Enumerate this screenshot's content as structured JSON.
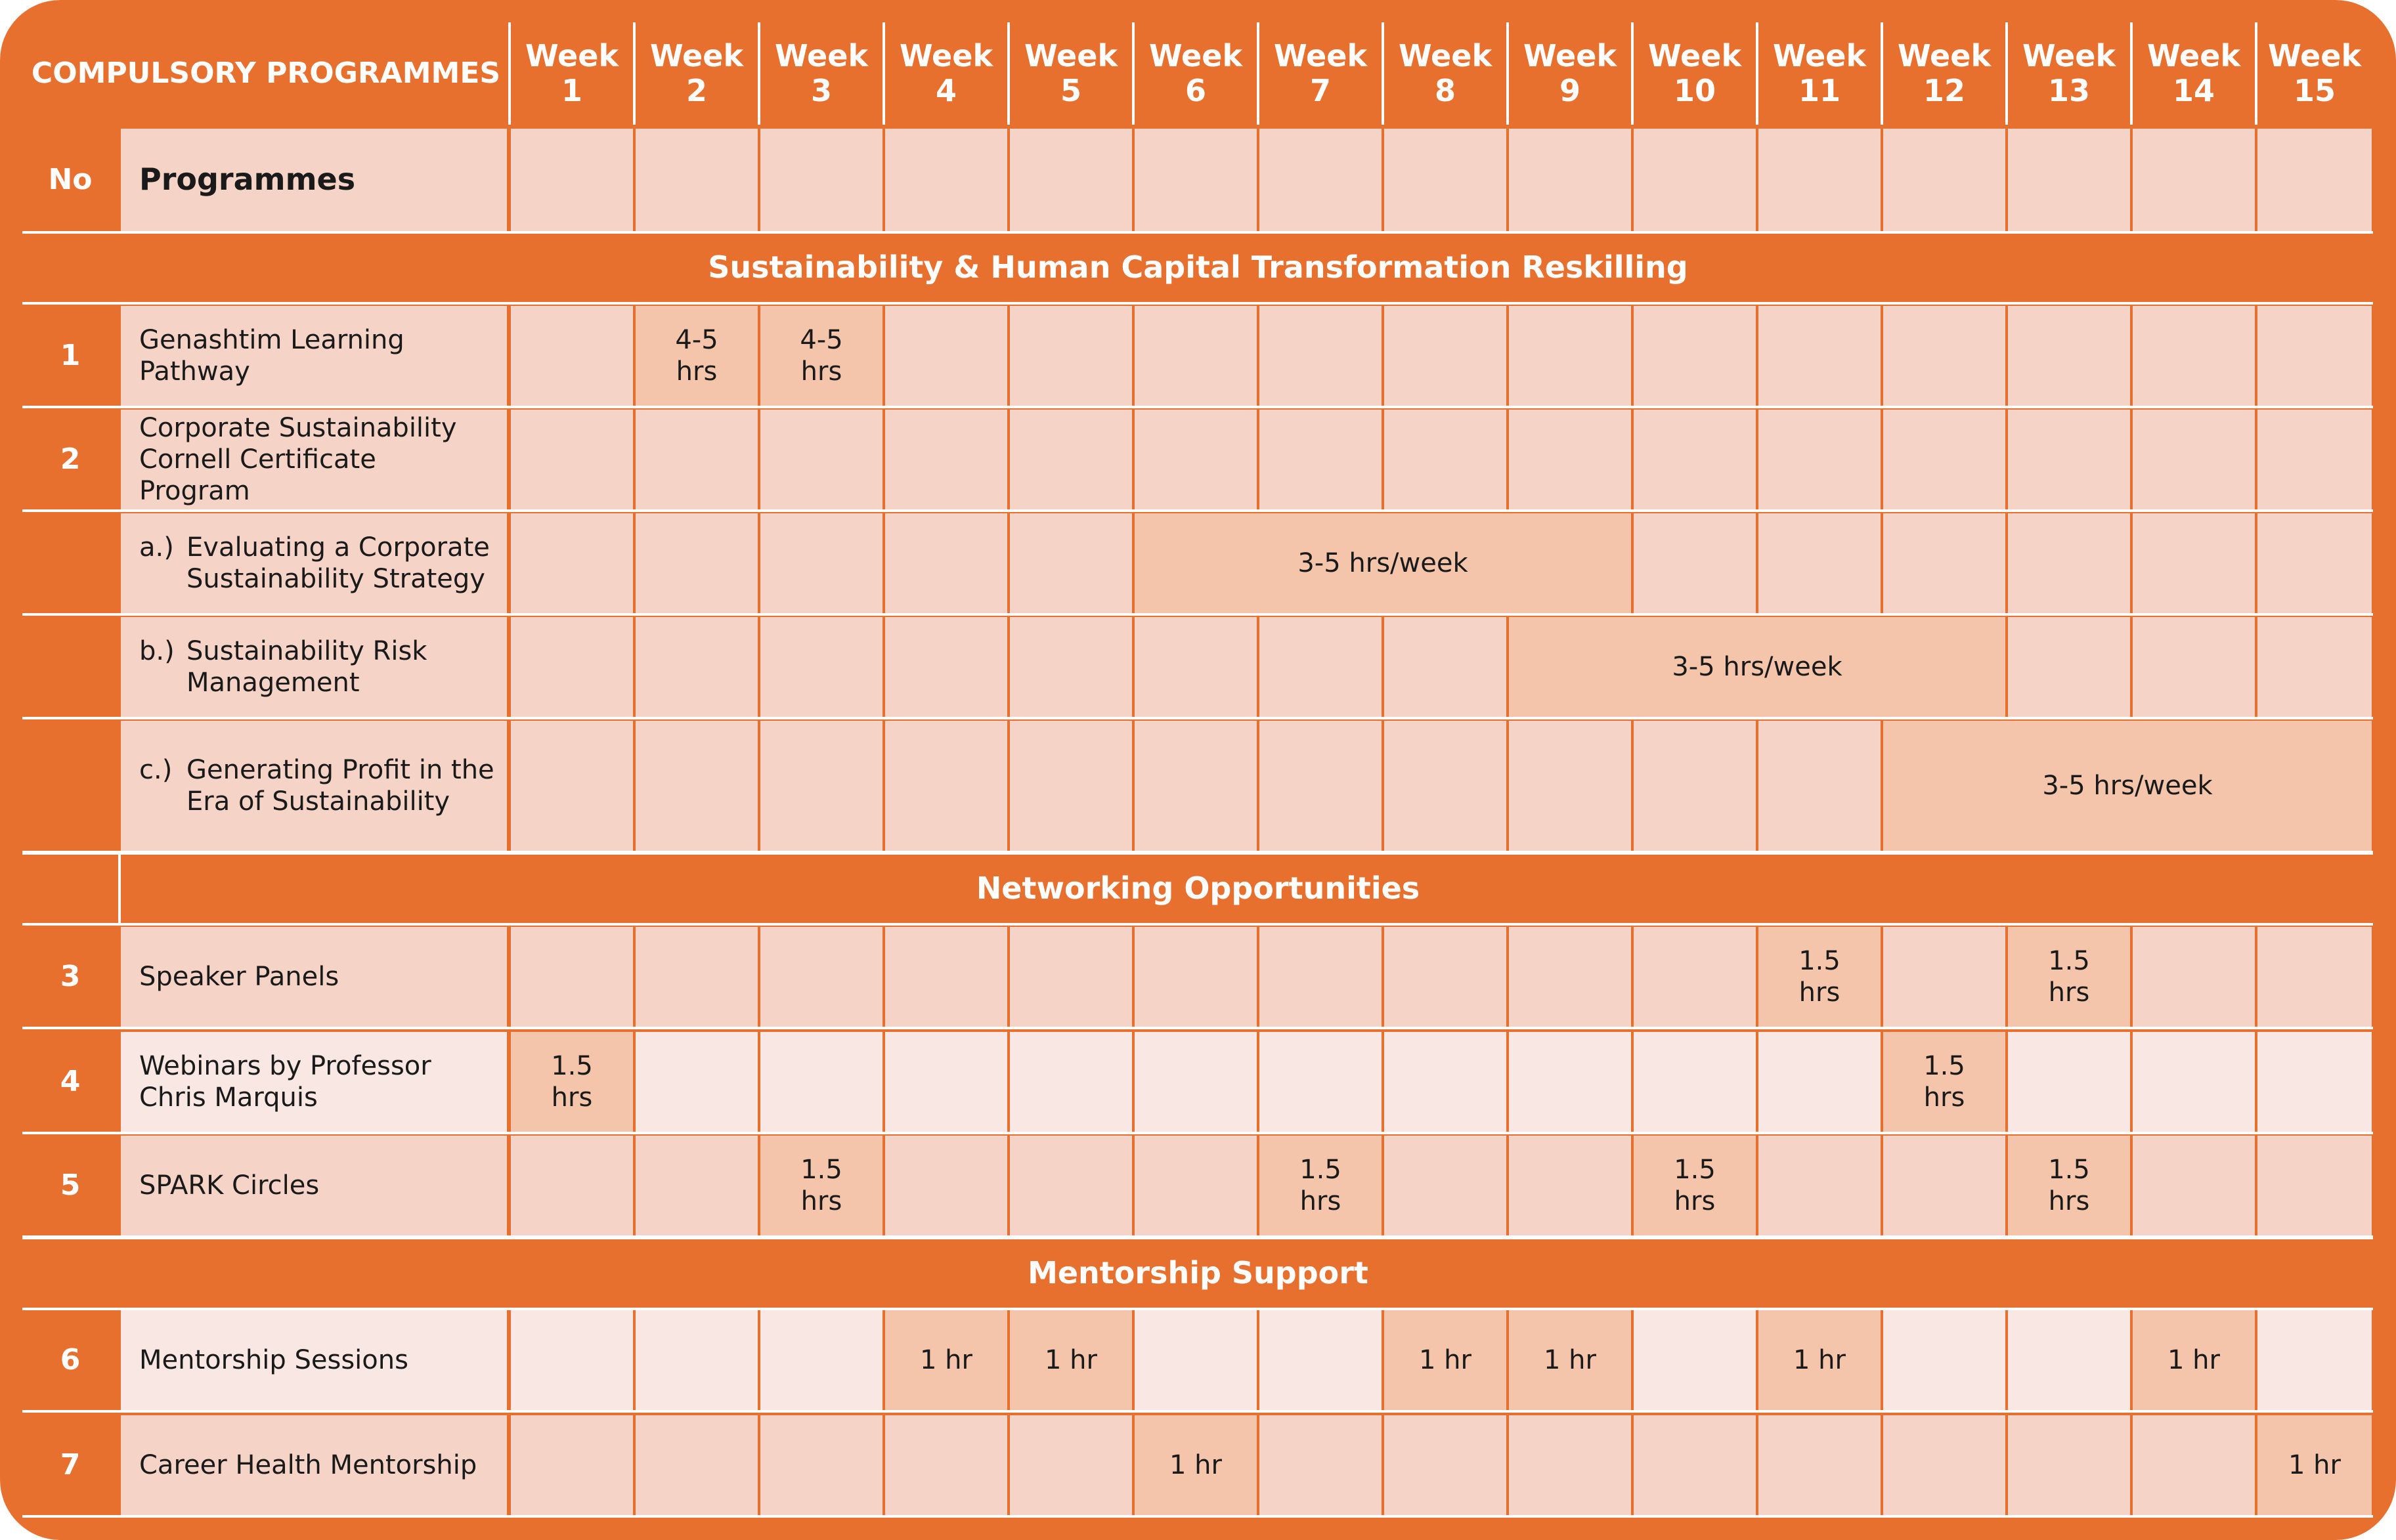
{
  "header": {
    "title": "COMPULSORY PROGRAMMES",
    "weeks": [
      "Week 1",
      "Week 2",
      "Week 3",
      "Week 4",
      "Week 5",
      "Week 6",
      "Week 7",
      "Week 8",
      "Week 9",
      "Week 10",
      "Week 11",
      "Week 12",
      "Week 13",
      "Week 14",
      "Week 15"
    ],
    "week_word": "Week",
    "no_label": "No",
    "programmes_label": "Programmes"
  },
  "colors": {
    "orange": "#E8702F",
    "cell": "#F6D3C7",
    "cell_light": "#F8E7E3",
    "highlight": "#F4C5AA"
  },
  "sections": [
    "Sustainability & Human Capital Transformation Reskilling",
    "Networking Opportunities",
    "Mentorship Support"
  ],
  "rows": [
    {
      "no": "1",
      "name": "Genashtim Learning Pathway",
      "shade": "cell",
      "spans": [
        {
          "start": 2,
          "end": 2,
          "text": "4-5 hrs"
        },
        {
          "start": 3,
          "end": 3,
          "text": "4-5 hrs"
        }
      ]
    },
    {
      "no": "2",
      "name": "Corporate Sustainability Cornell Certificate Program",
      "shade": "cell",
      "spans": []
    },
    {
      "no": "",
      "label": "a.)",
      "name": "Evaluating a Corporate Sustainability Strategy",
      "shade": "cell",
      "spans": [
        {
          "start": 6,
          "end": 9,
          "text": "3-5 hrs/week"
        }
      ]
    },
    {
      "no": "",
      "label": "b.)",
      "name": "Sustainability Risk Management",
      "shade": "cell",
      "spans": [
        {
          "start": 9,
          "end": 12,
          "text": "3-5 hrs/week"
        }
      ]
    },
    {
      "no": "",
      "label": "c.)",
      "name": "Generating Profit in the Era of Sustainability",
      "shade": "cell",
      "spans": [
        {
          "start": 12,
          "end": 15,
          "text": "3-5 hrs/week"
        }
      ]
    },
    {
      "no": "3",
      "name": "Speaker Panels",
      "shade": "cell",
      "spans": [
        {
          "start": 11,
          "end": 11,
          "text": "1.5 hrs"
        },
        {
          "start": 13,
          "end": 13,
          "text": "1.5 hrs"
        }
      ]
    },
    {
      "no": "4",
      "name": "Webinars by Professor Chris Marquis",
      "shade": "cell_light",
      "spans": [
        {
          "start": 1,
          "end": 1,
          "text": "1.5 hrs"
        },
        {
          "start": 12,
          "end": 12,
          "text": "1.5 hrs"
        }
      ]
    },
    {
      "no": "5",
      "name": "SPARK Circles",
      "shade": "cell",
      "spans": [
        {
          "start": 3,
          "end": 3,
          "text": "1.5 hrs"
        },
        {
          "start": 7,
          "end": 7,
          "text": "1.5 hrs"
        },
        {
          "start": 10,
          "end": 10,
          "text": "1.5 hrs"
        },
        {
          "start": 13,
          "end": 13,
          "text": "1.5 hrs"
        }
      ]
    },
    {
      "no": "6",
      "name": "Mentorship Sessions",
      "shade": "cell_light",
      "spans": [
        {
          "start": 4,
          "end": 4,
          "text": "1 hr"
        },
        {
          "start": 5,
          "end": 5,
          "text": "1 hr"
        },
        {
          "start": 8,
          "end": 8,
          "text": "1 hr"
        },
        {
          "start": 9,
          "end": 9,
          "text": "1 hr"
        },
        {
          "start": 11,
          "end": 11,
          "text": "1 hr"
        },
        {
          "start": 14,
          "end": 14,
          "text": "1 hr"
        }
      ]
    },
    {
      "no": "7",
      "name": "Career Health Mentorship",
      "shade": "cell",
      "spans": [
        {
          "start": 6,
          "end": 6,
          "text": "1 hr"
        },
        {
          "start": 15,
          "end": 15,
          "text": "1 hr"
        }
      ]
    }
  ]
}
